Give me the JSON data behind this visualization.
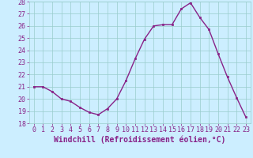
{
  "x": [
    0,
    1,
    2,
    3,
    4,
    5,
    6,
    7,
    8,
    9,
    10,
    11,
    12,
    13,
    14,
    15,
    16,
    17,
    18,
    19,
    20,
    21,
    22,
    23
  ],
  "y": [
    21.0,
    21.0,
    20.6,
    20.0,
    19.8,
    19.3,
    18.9,
    18.7,
    19.2,
    20.0,
    21.5,
    23.3,
    24.9,
    26.0,
    26.1,
    26.1,
    27.4,
    27.9,
    26.7,
    25.7,
    23.7,
    21.8,
    20.1,
    18.5
  ],
  "xlabel": "Windchill (Refroidissement éolien,°C)",
  "ylim": [
    18,
    28
  ],
  "xlim": [
    -0.5,
    23.5
  ],
  "yticks": [
    18,
    19,
    20,
    21,
    22,
    23,
    24,
    25,
    26,
    27,
    28
  ],
  "xticks": [
    0,
    1,
    2,
    3,
    4,
    5,
    6,
    7,
    8,
    9,
    10,
    11,
    12,
    13,
    14,
    15,
    16,
    17,
    18,
    19,
    20,
    21,
    22,
    23
  ],
  "line_color": "#882288",
  "marker": "s",
  "marker_size": 1.8,
  "line_width": 1.0,
  "bg_color": "#cceeff",
  "grid_color": "#99cccc",
  "xlabel_fontsize": 7,
  "tick_fontsize": 6,
  "tick_color": "#882288",
  "xlabel_color": "#882288"
}
